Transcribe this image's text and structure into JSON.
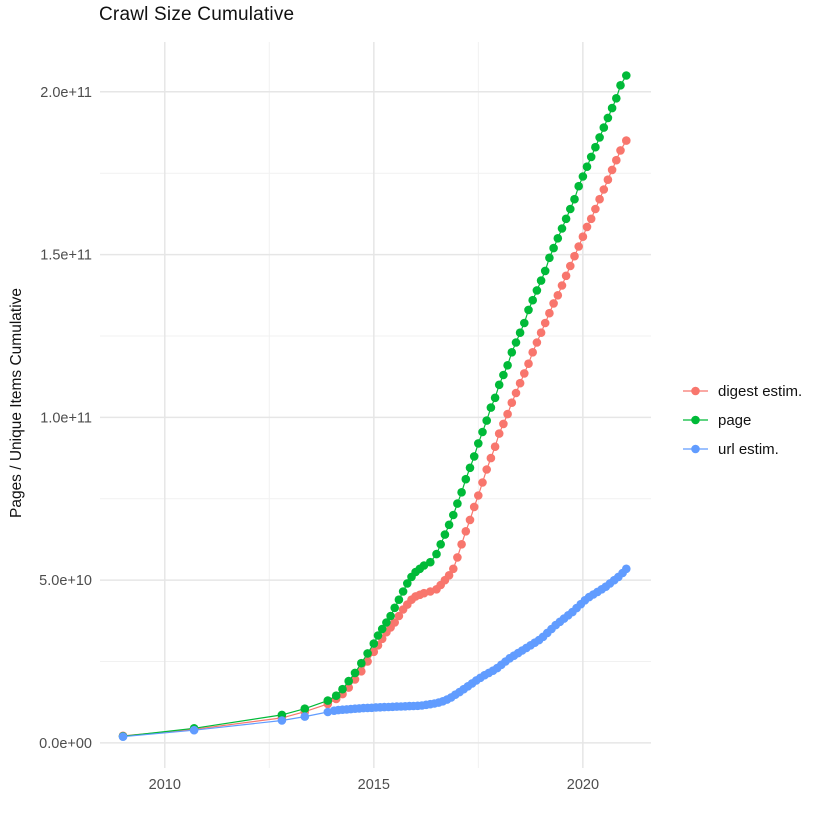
{
  "chart_data": {
    "type": "line",
    "title": "Crawl Size Cumulative",
    "xlabel": "",
    "ylabel": "Pages / Unique Items Cumulative",
    "grid": true,
    "legend_position": "right",
    "xlim": [
      2008.45,
      2021.63
    ],
    "ylim": [
      -7700000000.0,
      215300000000.0
    ],
    "x_major_ticks": {
      "values": [
        2010,
        2015,
        2020
      ],
      "labels": [
        "2010",
        "2015",
        "2020"
      ]
    },
    "y_major_ticks": {
      "values": [
        0,
        50000000000.0,
        100000000000.0,
        150000000000.0,
        200000000000.0
      ],
      "labels": [
        "0.0e+00",
        "5.0e+10",
        "1.0e+11",
        "1.5e+11",
        "2.0e+11"
      ]
    },
    "x_minor_ticks": [
      2012.5,
      2017.5
    ],
    "y_minor_ticks": [
      25000000000.0,
      75000000000.0,
      125000000000.0,
      175000000000.0
    ],
    "colors": {
      "major_grid": "#E6E6E6",
      "minor_grid": "#F1F1F1",
      "tick_label": "#4D4D4D",
      "text": "#111111",
      "background": "#FFFFFF"
    },
    "series": [
      {
        "name": "digest estim.",
        "color": "#F8766D",
        "points": [
          [
            2009.0,
            2200000000.0
          ],
          [
            2010.7,
            4200000000.0
          ],
          [
            2012.8,
            7700000000.0
          ],
          [
            2013.35,
            9600000000.0
          ],
          [
            2013.9,
            12000000000.0
          ],
          [
            2014.1,
            13500000000.0
          ],
          [
            2014.25,
            15000000000.0
          ],
          [
            2014.4,
            17000000000.0
          ],
          [
            2014.55,
            19500000000.0
          ],
          [
            2014.7,
            22000000000.0
          ],
          [
            2014.85,
            25000000000.0
          ],
          [
            2015.0,
            28000000000.0
          ],
          [
            2015.1,
            30000000000.0
          ],
          [
            2015.2,
            32000000000.0
          ],
          [
            2015.3,
            34000000000.0
          ],
          [
            2015.4,
            35500000000.0
          ],
          [
            2015.5,
            37000000000.0
          ],
          [
            2015.6,
            39000000000.0
          ],
          [
            2015.7,
            41000000000.0
          ],
          [
            2015.8,
            42500000000.0
          ],
          [
            2015.9,
            44000000000.0
          ],
          [
            2016.0,
            45000000000.0
          ],
          [
            2016.1,
            45500000000.0
          ],
          [
            2016.2,
            46000000000.0
          ],
          [
            2016.35,
            46500000000.0
          ],
          [
            2016.5,
            47200000000.0
          ],
          [
            2016.6,
            48500000000.0
          ],
          [
            2016.7,
            50000000000.0
          ],
          [
            2016.8,
            51500000000.0
          ],
          [
            2016.9,
            53500000000.0
          ],
          [
            2017.0,
            57000000000.0
          ],
          [
            2017.1,
            61000000000.0
          ],
          [
            2017.2,
            65000000000.0
          ],
          [
            2017.3,
            68500000000.0
          ],
          [
            2017.4,
            72500000000.0
          ],
          [
            2017.5,
            76000000000.0
          ],
          [
            2017.6,
            80000000000.0
          ],
          [
            2017.7,
            84000000000.0
          ],
          [
            2017.8,
            87500000000.0
          ],
          [
            2017.9,
            91000000000.0
          ],
          [
            2018.0,
            95000000000.0
          ],
          [
            2018.1,
            98000000000.0
          ],
          [
            2018.2,
            101000000000.0
          ],
          [
            2018.3,
            104500000000.0
          ],
          [
            2018.4,
            107500000000.0
          ],
          [
            2018.5,
            110500000000.0
          ],
          [
            2018.6,
            113500000000.0
          ],
          [
            2018.7,
            116500000000.0
          ],
          [
            2018.8,
            120000000000.0
          ],
          [
            2018.9,
            123000000000.0
          ],
          [
            2019.0,
            126000000000.0
          ],
          [
            2019.1,
            129000000000.0
          ],
          [
            2019.2,
            132000000000.0
          ],
          [
            2019.3,
            135000000000.0
          ],
          [
            2019.4,
            137500000000.0
          ],
          [
            2019.5,
            140500000000.0
          ],
          [
            2019.6,
            143500000000.0
          ],
          [
            2019.7,
            146500000000.0
          ],
          [
            2019.8,
            149500000000.0
          ],
          [
            2019.9,
            152500000000.0
          ],
          [
            2020.0,
            155500000000.0
          ],
          [
            2020.1,
            158500000000.0
          ],
          [
            2020.2,
            161000000000.0
          ],
          [
            2020.3,
            164000000000.0
          ],
          [
            2020.4,
            167000000000.0
          ],
          [
            2020.5,
            170000000000.0
          ],
          [
            2020.6,
            173000000000.0
          ],
          [
            2020.7,
            176000000000.0
          ],
          [
            2020.8,
            179000000000.0
          ],
          [
            2020.9,
            182000000000.0
          ],
          [
            2021.04,
            185000000000.0
          ]
        ]
      },
      {
        "name": "page",
        "color": "#00BA38",
        "points": [
          [
            2009.0,
            2050000000.0
          ],
          [
            2010.7,
            4500000000.0
          ],
          [
            2012.8,
            8600000000.0
          ],
          [
            2013.35,
            10500000000.0
          ],
          [
            2013.9,
            13000000000.0
          ],
          [
            2014.1,
            14500000000.0
          ],
          [
            2014.25,
            16500000000.0
          ],
          [
            2014.4,
            19000000000.0
          ],
          [
            2014.55,
            21500000000.0
          ],
          [
            2014.7,
            24500000000.0
          ],
          [
            2014.85,
            27500000000.0
          ],
          [
            2015.0,
            30500000000.0
          ],
          [
            2015.1,
            33000000000.0
          ],
          [
            2015.2,
            35000000000.0
          ],
          [
            2015.3,
            37000000000.0
          ],
          [
            2015.4,
            39000000000.0
          ],
          [
            2015.5,
            41500000000.0
          ],
          [
            2015.6,
            44000000000.0
          ],
          [
            2015.7,
            46500000000.0
          ],
          [
            2015.8,
            49000000000.0
          ],
          [
            2015.9,
            51000000000.0
          ],
          [
            2016.0,
            52500000000.0
          ],
          [
            2016.1,
            53500000000.0
          ],
          [
            2016.2,
            54500000000.0
          ],
          [
            2016.35,
            55500000000.0
          ],
          [
            2016.5,
            58000000000.0
          ],
          [
            2016.6,
            61000000000.0
          ],
          [
            2016.7,
            64000000000.0
          ],
          [
            2016.8,
            67000000000.0
          ],
          [
            2016.9,
            70000000000.0
          ],
          [
            2017.0,
            73500000000.0
          ],
          [
            2017.1,
            77000000000.0
          ],
          [
            2017.2,
            81000000000.0
          ],
          [
            2017.3,
            84500000000.0
          ],
          [
            2017.4,
            88000000000.0
          ],
          [
            2017.5,
            92000000000.0
          ],
          [
            2017.6,
            95500000000.0
          ],
          [
            2017.7,
            99000000000.0
          ],
          [
            2017.8,
            103000000000.0
          ],
          [
            2017.9,
            106000000000.0
          ],
          [
            2018.0,
            110000000000.0
          ],
          [
            2018.1,
            113000000000.0
          ],
          [
            2018.2,
            116000000000.0
          ],
          [
            2018.3,
            120000000000.0
          ],
          [
            2018.4,
            123000000000.0
          ],
          [
            2018.5,
            126000000000.0
          ],
          [
            2018.6,
            129000000000.0
          ],
          [
            2018.7,
            133000000000.0
          ],
          [
            2018.8,
            136000000000.0
          ],
          [
            2018.9,
            139000000000.0
          ],
          [
            2019.0,
            142000000000.0
          ],
          [
            2019.1,
            145000000000.0
          ],
          [
            2019.2,
            149000000000.0
          ],
          [
            2019.3,
            152000000000.0
          ],
          [
            2019.4,
            155000000000.0
          ],
          [
            2019.5,
            158000000000.0
          ],
          [
            2019.6,
            161000000000.0
          ],
          [
            2019.7,
            164000000000.0
          ],
          [
            2019.8,
            167000000000.0
          ],
          [
            2019.9,
            171000000000.0
          ],
          [
            2020.0,
            174000000000.0
          ],
          [
            2020.1,
            177000000000.0
          ],
          [
            2020.2,
            180000000000.0
          ],
          [
            2020.3,
            183000000000.0
          ],
          [
            2020.4,
            186000000000.0
          ],
          [
            2020.5,
            189000000000.0
          ],
          [
            2020.6,
            192000000000.0
          ],
          [
            2020.7,
            195000000000.0
          ],
          [
            2020.8,
            198000000000.0
          ],
          [
            2020.9,
            202000000000.0
          ],
          [
            2021.04,
            205000000000.0
          ]
        ]
      },
      {
        "name": "url estim.",
        "color": "#619CFF",
        "points": [
          [
            2009.0,
            1900000000.0
          ],
          [
            2010.7,
            3900000000.0
          ],
          [
            2012.8,
            6900000000.0
          ],
          [
            2013.35,
            8100000000.0
          ],
          [
            2013.9,
            9500000000.0
          ],
          [
            2014.05,
            9900000000.0
          ],
          [
            2014.15,
            10100000000.0
          ],
          [
            2014.25,
            10200000000.0
          ],
          [
            2014.35,
            10300000000.0
          ],
          [
            2014.45,
            10400000000.0
          ],
          [
            2014.55,
            10500000000.0
          ],
          [
            2014.65,
            10600000000.0
          ],
          [
            2014.75,
            10700000000.0
          ],
          [
            2014.85,
            10750000000.0
          ],
          [
            2014.95,
            10800000000.0
          ],
          [
            2015.05,
            10900000000.0
          ],
          [
            2015.15,
            10950000000.0
          ],
          [
            2015.25,
            11000000000.0
          ],
          [
            2015.35,
            11050000000.0
          ],
          [
            2015.45,
            11100000000.0
          ],
          [
            2015.55,
            11150000000.0
          ],
          [
            2015.65,
            11200000000.0
          ],
          [
            2015.75,
            11250000000.0
          ],
          [
            2015.85,
            11300000000.0
          ],
          [
            2015.95,
            11350000000.0
          ],
          [
            2016.05,
            11400000000.0
          ],
          [
            2016.15,
            11500000000.0
          ],
          [
            2016.25,
            11700000000.0
          ],
          [
            2016.35,
            11900000000.0
          ],
          [
            2016.45,
            12100000000.0
          ],
          [
            2016.55,
            12400000000.0
          ],
          [
            2016.65,
            12800000000.0
          ],
          [
            2016.75,
            13300000000.0
          ],
          [
            2016.85,
            14000000000.0
          ],
          [
            2016.95,
            14800000000.0
          ],
          [
            2017.05,
            15600000000.0
          ],
          [
            2017.15,
            16500000000.0
          ],
          [
            2017.25,
            17400000000.0
          ],
          [
            2017.35,
            18300000000.0
          ],
          [
            2017.45,
            19200000000.0
          ],
          [
            2017.55,
            20000000000.0
          ],
          [
            2017.65,
            20800000000.0
          ],
          [
            2017.75,
            21500000000.0
          ],
          [
            2017.85,
            22200000000.0
          ],
          [
            2017.95,
            23000000000.0
          ],
          [
            2018.05,
            24000000000.0
          ],
          [
            2018.15,
            25000000000.0
          ],
          [
            2018.25,
            26000000000.0
          ],
          [
            2018.35,
            26800000000.0
          ],
          [
            2018.45,
            27600000000.0
          ],
          [
            2018.55,
            28400000000.0
          ],
          [
            2018.65,
            29200000000.0
          ],
          [
            2018.75,
            30000000000.0
          ],
          [
            2018.85,
            30800000000.0
          ],
          [
            2018.95,
            31600000000.0
          ],
          [
            2019.05,
            32600000000.0
          ],
          [
            2019.15,
            33800000000.0
          ],
          [
            2019.25,
            35000000000.0
          ],
          [
            2019.35,
            36200000000.0
          ],
          [
            2019.45,
            37200000000.0
          ],
          [
            2019.55,
            38200000000.0
          ],
          [
            2019.65,
            39200000000.0
          ],
          [
            2019.75,
            40200000000.0
          ],
          [
            2019.85,
            41400000000.0
          ],
          [
            2019.95,
            42600000000.0
          ],
          [
            2020.05,
            43800000000.0
          ],
          [
            2020.15,
            44800000000.0
          ],
          [
            2020.25,
            45600000000.0
          ],
          [
            2020.35,
            46400000000.0
          ],
          [
            2020.45,
            47200000000.0
          ],
          [
            2020.55,
            48000000000.0
          ],
          [
            2020.65,
            49000000000.0
          ],
          [
            2020.75,
            50000000000.0
          ],
          [
            2020.85,
            51000000000.0
          ],
          [
            2020.95,
            52200000000.0
          ],
          [
            2021.04,
            53500000000.0
          ]
        ]
      }
    ]
  }
}
